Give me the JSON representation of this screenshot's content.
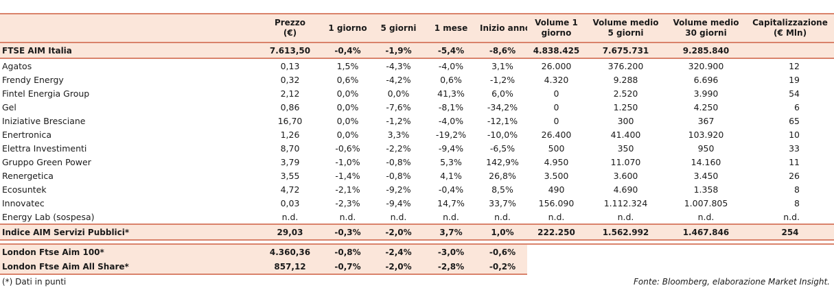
{
  "headers": {
    "name": "",
    "prezzo": [
      "Prezzo",
      "(€)"
    ],
    "giorno1": "1 giorno",
    "giorni5": "5 giorni",
    "mese1": "1 mese",
    "inizio": "Inizio anno",
    "vol1": [
      "Volume 1",
      "giorno"
    ],
    "vol5": [
      "Volume medio",
      "5 giorni"
    ],
    "vol30": [
      "Volume medio",
      "30 giorni"
    ],
    "cap": [
      "Capitalizzazione",
      "(€ Mln)"
    ]
  },
  "index_row": {
    "name": "FTSE AIM Italia",
    "prezzo": "7.613,50",
    "g1": "-0,4%",
    "g5": "-1,9%",
    "m1": "-5,4%",
    "ia": "-8,6%",
    "v1": "4.838.425",
    "v5": "7.675.731",
    "v30": "9.285.840",
    "cap": ""
  },
  "rows": [
    {
      "name": "Agatos",
      "prezzo": "0,13",
      "g1": "1,5%",
      "g5": "-4,3%",
      "m1": "-4,0%",
      "ia": "3,1%",
      "v1": "26.000",
      "v5": "376.200",
      "v30": "320.900",
      "cap": "12"
    },
    {
      "name": "Frendy Energy",
      "prezzo": "0,32",
      "g1": "0,6%",
      "g5": "-4,2%",
      "m1": "0,6%",
      "ia": "-1,2%",
      "v1": "4.320",
      "v5": "9.288",
      "v30": "6.696",
      "cap": "19"
    },
    {
      "name": "Fintel Energia Group",
      "prezzo": "2,12",
      "g1": "0,0%",
      "g5": "0,0%",
      "m1": "41,3%",
      "ia": "6,0%",
      "v1": "0",
      "v5": "2.520",
      "v30": "3.990",
      "cap": "54"
    },
    {
      "name": "Gel",
      "prezzo": "0,86",
      "g1": "0,0%",
      "g5": "-7,6%",
      "m1": "-8,1%",
      "ia": "-34,2%",
      "v1": "0",
      "v5": "1.250",
      "v30": "4.250",
      "cap": "6"
    },
    {
      "name": "Iniziative Bresciane",
      "prezzo": "16,70",
      "g1": "0,0%",
      "g5": "-1,2%",
      "m1": "-4,0%",
      "ia": "-12,1%",
      "v1": "0",
      "v5": "300",
      "v30": "367",
      "cap": "65"
    },
    {
      "name": "Enertronica",
      "prezzo": "1,26",
      "g1": "0,0%",
      "g5": "3,3%",
      "m1": "-19,2%",
      "ia": "-10,0%",
      "v1": "26.400",
      "v5": "41.400",
      "v30": "103.920",
      "cap": "10"
    },
    {
      "name": "Elettra Investimenti",
      "prezzo": "8,70",
      "g1": "-0,6%",
      "g5": "-2,2%",
      "m1": "-9,4%",
      "ia": "-6,5%",
      "v1": "500",
      "v5": "350",
      "v30": "950",
      "cap": "33"
    },
    {
      "name": "Gruppo Green Power",
      "prezzo": "3,79",
      "g1": "-1,0%",
      "g5": "-0,8%",
      "m1": "5,3%",
      "ia": "142,9%",
      "v1": "4.950",
      "v5": "11.070",
      "v30": "14.160",
      "cap": "11"
    },
    {
      "name": "Renergetica",
      "prezzo": "3,55",
      "g1": "-1,4%",
      "g5": "-0,8%",
      "m1": "4,1%",
      "ia": "26,8%",
      "v1": "3.500",
      "v5": "3.600",
      "v30": "3.450",
      "cap": "26"
    },
    {
      "name": "Ecosuntek",
      "prezzo": "4,72",
      "g1": "-2,1%",
      "g5": "-9,2%",
      "m1": "-0,4%",
      "ia": "8,5%",
      "v1": "490",
      "v5": "4.690",
      "v30": "1.358",
      "cap": "8"
    },
    {
      "name": "Innovatec",
      "prezzo": "0,03",
      "g1": "-2,3%",
      "g5": "-9,4%",
      "m1": "14,7%",
      "ia": "33,7%",
      "v1": "156.090",
      "v5": "1.112.324",
      "v30": "1.007.805",
      "cap": "8"
    },
    {
      "name": "Energy Lab (sospesa)",
      "prezzo": "n.d.",
      "g1": "n.d.",
      "g5": "n.d.",
      "m1": "n.d.",
      "ia": "n.d.",
      "v1": "n.d.",
      "v5": "n.d.",
      "v30": "n.d.",
      "cap": "n.d."
    }
  ],
  "sector_row": {
    "name": "Indice AIM Servizi Pubblici*",
    "prezzo": "29,03",
    "g1": "-0,3%",
    "g5": "-2,0%",
    "m1": "3,7%",
    "ia": "1,0%",
    "v1": "222.250",
    "v5": "1.562.992",
    "v30": "1.467.846",
    "cap": "254"
  },
  "london_rows": [
    {
      "name": "London Ftse Aim 100*",
      "prezzo": "4.360,36",
      "g1": "-0,8%",
      "g5": "-2,4%",
      "m1": "-3,0%",
      "ia": "-0,6%"
    },
    {
      "name": "London Ftse Aim All Share*",
      "prezzo": "857,12",
      "g1": "-0,7%",
      "g5": "-2,0%",
      "m1": "-2,8%",
      "ia": "-0,2%"
    }
  ],
  "footer": {
    "note": "(*) Dati in punti",
    "source": "Fonte: Bloomberg, elaborazione Market Insight."
  },
  "colors": {
    "header_bg": "#fbe6da",
    "border": "#d9826a"
  }
}
